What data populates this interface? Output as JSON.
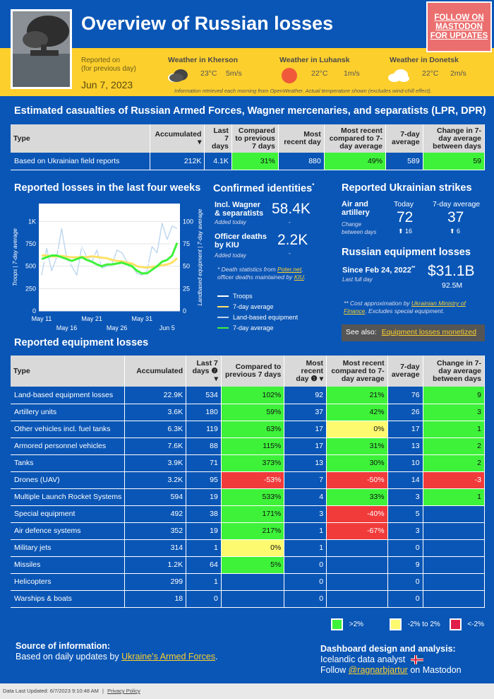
{
  "header": {
    "title": "Overview of Russian losses",
    "follow_label": "FOLLOW ON MASTODON FOR UPDATES",
    "reported_on": "Reported on",
    "reported_on_sub": "(for previous day)",
    "report_date": "Jun 7, 2023"
  },
  "weather": [
    {
      "title": "Weather in Kherson",
      "temp": "23°C",
      "wind": "5m/s",
      "icon": "cloud-rain-icon"
    },
    {
      "title": "Weather in Luhansk",
      "temp": "22°C",
      "wind": "1m/s",
      "icon": "sun-icon"
    },
    {
      "title": "Weather in Donetsk",
      "temp": "22°C",
      "wind": "2m/s",
      "icon": "cloud-icon"
    }
  ],
  "weather_note": "Information retrieved each morning from OpenWeather. Actual temperature shown (excludes wind-chill effect).",
  "casualties": {
    "title": "Estimated casualties of Russian Armed Forces, Wagner mercenaries, and separatists (LPR, DPR)",
    "headers": [
      "Type",
      "Accumulated",
      "Last 7 days",
      "Compared to previous 7 days",
      "Most recent day",
      "Most recent compared to 7-day average",
      "7-day average",
      "Change in 7-day average between days"
    ],
    "row": [
      "Based on Ukrainian field reports",
      "212K",
      "4.1K",
      "31%",
      "880",
      "49%",
      "589",
      "59"
    ]
  },
  "identities": {
    "title": "Confirmed identities",
    "wagner_label": "Incl. Wagner & separatists",
    "wagner_value": "58.4K",
    "wagner_delta": "-",
    "officer_label": "Officer deaths by KIU",
    "officer_value": "2.2K",
    "officer_delta": "-",
    "added_label": "Added today",
    "note_a": "* Death statistics from ",
    "note_link1": "Poter.net",
    "note_b": ", officer deaths maintained by ",
    "note_link2": "KIU",
    "note_c": "."
  },
  "strikes": {
    "title": "Reported Ukrainian strikes",
    "type": "Air and artillery",
    "change_label": "Change between days",
    "today_label": "Today",
    "today_value": "72",
    "today_change": "⬆ 16",
    "avg_label": "7-day average",
    "avg_value": "37",
    "avg_change": "⬆ 6"
  },
  "equip_value": {
    "title": "Russian equipment losses",
    "since": "Since Feb 24, 2022",
    "last_full_day": "Last full day",
    "value": "$31.1B",
    "delta": "92.5M",
    "note_a": "** Cost approximation by ",
    "note_link": "Ukrainian Ministry of Finance",
    "note_b": ". Excludes special equipment."
  },
  "see_also": {
    "label": "See also:",
    "link": "Equipment losses monetized"
  },
  "chart_data": {
    "type": "line",
    "title": "Reported losses in the last four weeks",
    "ylabel_left": "Troops | 7-day average",
    "ylabel_right": "Landbased equipment | 7-day average",
    "ylim_left": [
      0,
      1200
    ],
    "ylim_right": [
      0,
      120
    ],
    "yticks_left": [
      "0",
      "250",
      "500",
      "750",
      "1K"
    ],
    "yticks_left_values": [
      0,
      250,
      500,
      750,
      1000
    ],
    "yticks_right": [
      "0",
      "25",
      "50",
      "75",
      "100"
    ],
    "yticks_right_values": [
      0,
      25,
      50,
      75,
      100
    ],
    "xticks_top": [
      "May 11",
      "May 21",
      "May 31"
    ],
    "xticks_top_idx": [
      0,
      10,
      20
    ],
    "xticks_bottom": [
      "May 16",
      "May 26",
      "Jun 5"
    ],
    "xticks_bottom_idx": [
      5,
      15,
      25
    ],
    "series": [
      {
        "name": "Troops",
        "axis": "left",
        "color": "#ffffff",
        "values": [
          520,
          600,
          610,
          700,
          640,
          560,
          520,
          680,
          710,
          560,
          650,
          600,
          540,
          610,
          520,
          500,
          560,
          490,
          560,
          440,
          470,
          530,
          540,
          580,
          500,
          690,
          760,
          880
        ]
      },
      {
        "name": "7-day average",
        "axis": "left",
        "color": "#ffe066",
        "values": [
          620,
          620,
          610,
          610,
          615,
          605,
          600,
          600,
          605,
          600,
          610,
          605,
          595,
          590,
          570,
          560,
          555,
          540,
          530,
          500,
          490,
          485,
          490,
          500,
          510,
          520,
          540,
          590
        ]
      },
      {
        "name": "Land-based equipment",
        "axis": "right",
        "color": "#bcd6ee",
        "values": [
          40,
          70,
          45,
          60,
          92,
          58,
          50,
          40,
          72,
          60,
          55,
          68,
          48,
          50,
          52,
          68,
          65,
          55,
          50,
          42,
          40,
          45,
          72,
          65,
          98,
          80,
          95,
          92
        ]
      },
      {
        "name": "7-day average",
        "axis": "right",
        "color": "#3ef23a",
        "values": [
          58,
          60,
          62,
          62,
          60,
          58,
          56,
          58,
          60,
          57,
          55,
          52,
          50,
          52,
          52,
          53,
          54,
          52,
          50,
          45,
          42,
          42,
          46,
          50,
          55,
          57,
          62,
          76
        ]
      }
    ]
  },
  "equipment": {
    "title": "Reported equipment losses",
    "headers": [
      "Type",
      "Accumulated",
      "Last 7 days ❷",
      "Compared to previous 7 days",
      "Most recent day ❶ ▾",
      "Most recent compared to 7-day average",
      "7-day average",
      "Change in 7-day average between days"
    ],
    "rows": [
      {
        "cells": [
          "Land-based equipment losses",
          "22.9K",
          "534",
          "102%",
          "92",
          "21%",
          "76",
          "9"
        ],
        "c3": "g",
        "c5": "g",
        "c7": "g"
      },
      {
        "cells": [
          "Artillery units",
          "3.6K",
          "180",
          "59%",
          "37",
          "42%",
          "26",
          "3"
        ],
        "c3": "g",
        "c5": "g",
        "c7": "g"
      },
      {
        "cells": [
          "Other vehicles incl. fuel tanks",
          "6.3K",
          "119",
          "63%",
          "17",
          "0%",
          "17",
          "1"
        ],
        "c3": "g",
        "c5": "y",
        "c7": "g"
      },
      {
        "cells": [
          "Armored personnel vehicles",
          "7.6K",
          "88",
          "115%",
          "17",
          "31%",
          "13",
          "2"
        ],
        "c3": "g",
        "c5": "g",
        "c7": "g"
      },
      {
        "cells": [
          "Tanks",
          "3.9K",
          "71",
          "373%",
          "13",
          "30%",
          "10",
          "2"
        ],
        "c3": "g",
        "c5": "g",
        "c7": "g"
      },
      {
        "cells": [
          "Drones (UAV)",
          "3.2K",
          "95",
          "-53%",
          "7",
          "-50%",
          "14",
          "-3"
        ],
        "c3": "r",
        "c5": "r",
        "c7": "r"
      },
      {
        "cells": [
          "Multiple Launch Rocket Systems",
          "594",
          "19",
          "533%",
          "4",
          "33%",
          "3",
          "1"
        ],
        "c3": "g",
        "c5": "g",
        "c7": "g"
      },
      {
        "cells": [
          "Special equipment",
          "492",
          "38",
          "171%",
          "3",
          "-40%",
          "5",
          ""
        ],
        "c3": "g",
        "c5": "r",
        "c7": ""
      },
      {
        "cells": [
          "Air defence systems",
          "352",
          "19",
          "217%",
          "1",
          "-67%",
          "3",
          ""
        ],
        "c3": "g",
        "c5": "r",
        "c7": ""
      },
      {
        "cells": [
          "Military jets",
          "314",
          "1",
          "0%",
          "1",
          "",
          "0",
          ""
        ],
        "c3": "y",
        "c5": "",
        "c7": ""
      },
      {
        "cells": [
          "Missiles",
          "1.2K",
          "64",
          "5%",
          "0",
          "",
          "9",
          ""
        ],
        "c3": "g",
        "c5": "",
        "c7": ""
      },
      {
        "cells": [
          "Helicopters",
          "299",
          "1",
          "",
          "0",
          "",
          "0",
          ""
        ],
        "c3": "",
        "c5": "",
        "c7": ""
      },
      {
        "cells": [
          "Warships & boats",
          "18",
          "0",
          "",
          "0",
          "",
          "0",
          ""
        ],
        "c3": "",
        "c5": "",
        "c7": ""
      }
    ]
  },
  "color_legend": [
    ">2%",
    "-2% to 2%",
    "<-2%"
  ],
  "source": {
    "title": "Source of information:",
    "text": "Based on daily updates by ",
    "link": "Ukraine's Armed Forces",
    "end": "."
  },
  "design": {
    "title": "Dashboard design and analysis:",
    "line1": "Icelandic data analyst",
    "follow": "Follow ",
    "handle": "@ragnarbjartur",
    "end": " on Mastodon"
  },
  "footer": {
    "updated": "Data Last Updated: 6/7/2023 9:10:48 AM",
    "privacy": "Privacy Policy"
  },
  "colors": {
    "background": "#0a56b6",
    "accent": "#fccf2d",
    "green": "#3ef23a",
    "yellow": "#fdfa70",
    "red": "#f13b3b"
  }
}
